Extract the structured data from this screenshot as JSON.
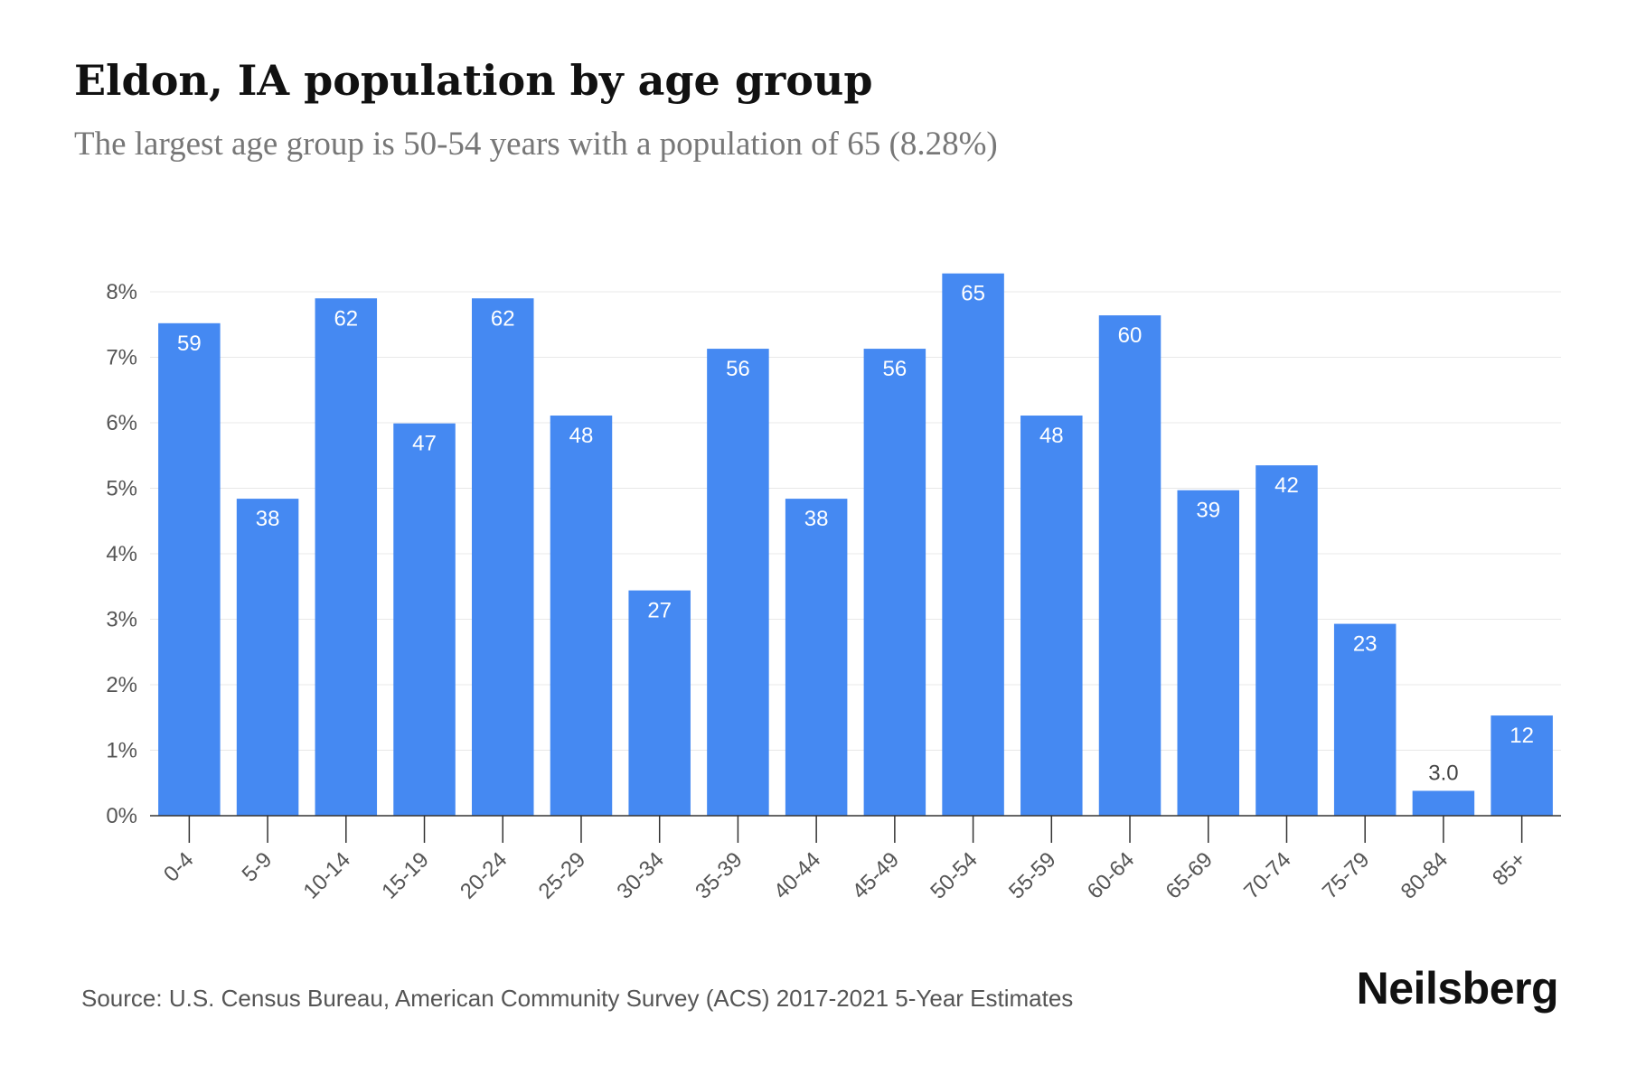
{
  "title": "Eldon, IA population by age group",
  "subtitle": "The largest age group is 50-54 years with a population of 65 (8.28%)",
  "source": "Source: U.S. Census Bureau, American Community Survey (ACS) 2017-2021 5-Year Estimates",
  "brand": "Neilsberg",
  "colors": {
    "bar": "#4589f2",
    "grid": "#e8e8e8",
    "axis": "#333333",
    "label_inside": "#ffffff",
    "label_outside": "#444444"
  },
  "chart_data": {
    "type": "bar",
    "categories": [
      "0-4",
      "5-9",
      "10-14",
      "15-19",
      "20-24",
      "25-29",
      "30-34",
      "35-39",
      "40-44",
      "45-49",
      "50-54",
      "55-59",
      "60-64",
      "65-69",
      "70-74",
      "75-79",
      "80-84",
      "85+"
    ],
    "values": [
      7.52,
      4.84,
      7.9,
      5.99,
      7.9,
      6.11,
      3.44,
      7.13,
      4.84,
      7.13,
      8.28,
      6.11,
      7.64,
      4.97,
      5.35,
      2.93,
      0.38,
      1.53
    ],
    "data_labels": [
      "59",
      "38",
      "62",
      "47",
      "62",
      "48",
      "27",
      "56",
      "38",
      "56",
      "65",
      "48",
      "60",
      "39",
      "42",
      "23",
      "3.0",
      "12"
    ],
    "y_ticks": [
      "0%",
      "1%",
      "2%",
      "3%",
      "4%",
      "5%",
      "6%",
      "7%",
      "8%"
    ],
    "ylim": [
      0,
      8.5
    ],
    "grid": true,
    "legend": "none",
    "title": "Eldon, IA population by age group",
    "xlabel": "",
    "ylabel": ""
  }
}
